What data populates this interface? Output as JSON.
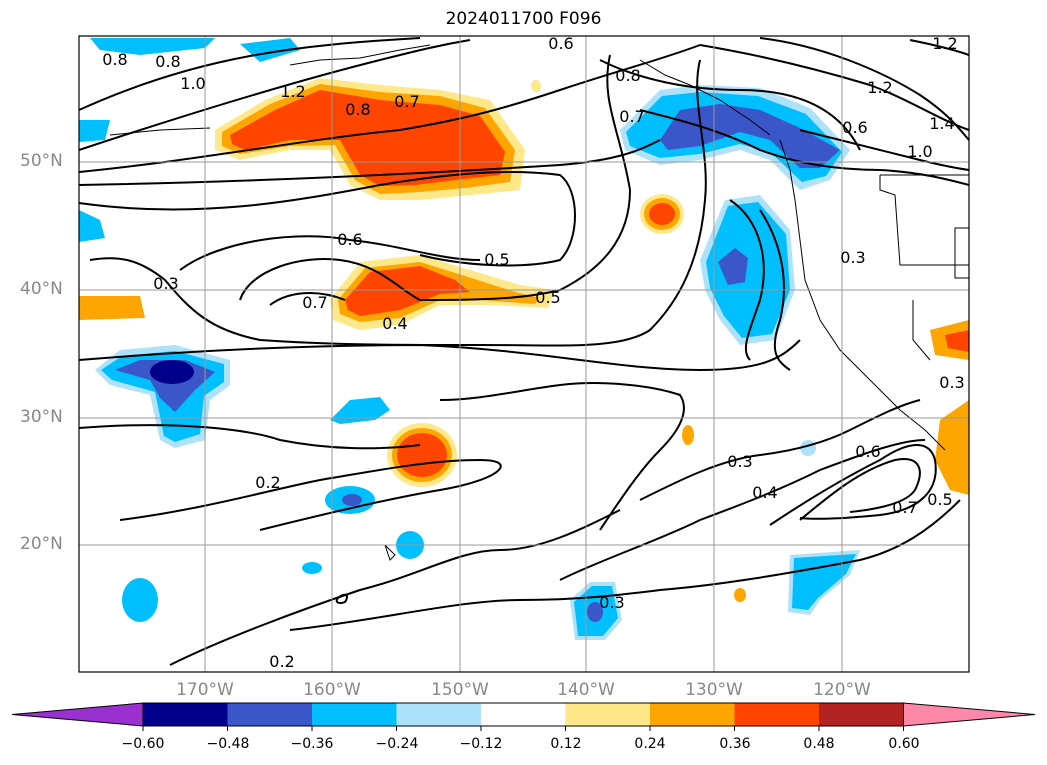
{
  "title": "2024011700 F096",
  "lat_labels": [
    "50°N",
    "40°N",
    "30°N",
    "20°N"
  ],
  "lon_labels": [
    "170°W",
    "160°W",
    "150°W",
    "140°W",
    "130°W",
    "120°W"
  ],
  "contour_labels": [
    "0.8",
    "0.8",
    "1.0",
    "1.2",
    "0.8",
    "0.7",
    "0.6",
    "0.8",
    "0.7",
    "1.2",
    "0.6",
    "1.0",
    "1.4",
    "1.2",
    "0.6",
    "0.5",
    "0.3",
    "0.7",
    "0.5",
    "0.4",
    "0.3",
    "0.3",
    "0.2",
    "0.3",
    "0.4",
    "0.6",
    "0.7",
    "0.5",
    "0.3",
    "0.2"
  ],
  "colorbar": {
    "ticks": [
      "−0.60",
      "−0.48",
      "−0.36",
      "−0.24",
      "−0.12",
      "0.12",
      "0.24",
      "0.36",
      "0.48",
      "0.60"
    ],
    "colors": [
      "#9b30d0",
      "#00008b",
      "#3a56c8",
      "#00bfff",
      "#aee2fa",
      "#ffffff",
      "#ffe88a",
      "#ffa500",
      "#ff4500",
      "#b22222",
      "#ff88aa"
    ]
  },
  "fill_colors": {
    "neg1": "#aee2fa",
    "neg2": "#00bfff",
    "neg3": "#3a56c8",
    "neg4": "#00008b",
    "pos1": "#ffe88a",
    "pos2": "#ffa500",
    "pos3": "#ff4500"
  }
}
